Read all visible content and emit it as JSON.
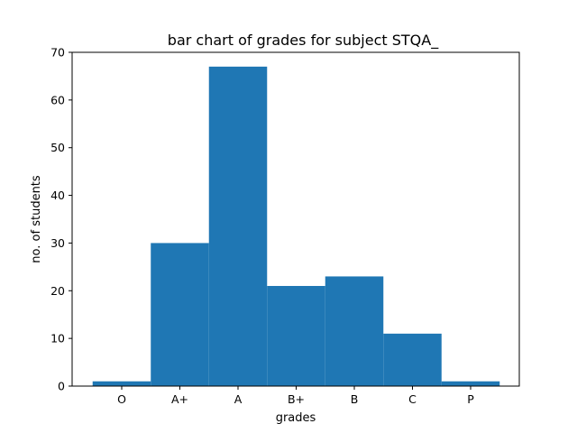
{
  "chart_data": {
    "type": "bar",
    "title": "bar chart of grades for subject STQA_",
    "xlabel": "grades",
    "ylabel": "no. of students",
    "categories": [
      "O",
      "A+",
      "A",
      "B+",
      "B",
      "C",
      "P"
    ],
    "values": [
      1,
      30,
      67,
      21,
      23,
      11,
      1
    ],
    "ylim": [
      0,
      70
    ],
    "yticks": [
      0,
      10,
      20,
      30,
      40,
      50,
      60,
      70
    ],
    "grid": false,
    "legend": "none",
    "bar_color": "#1f77b4"
  }
}
